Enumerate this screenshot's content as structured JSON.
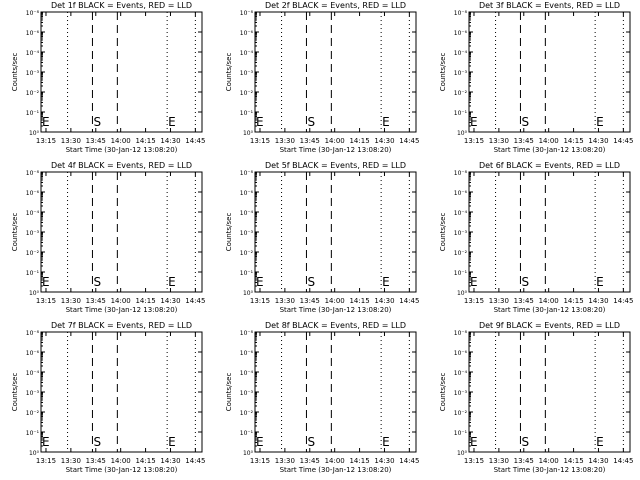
{
  "chart_data": [
    {
      "type": "line",
      "title": "Det 1f BLACK = Events, RED = LLD"
    },
    {
      "type": "line",
      "title": "Det 2f BLACK = Events, RED = LLD"
    },
    {
      "type": "line",
      "title": "Det 3f BLACK = Events, RED = LLD"
    },
    {
      "type": "line",
      "title": "Det 4f BLACK = Events, RED = LLD"
    },
    {
      "type": "line",
      "title": "Det 5f BLACK = Events, RED = LLD"
    },
    {
      "type": "line",
      "title": "Det 6f BLACK = Events, RED = LLD"
    },
    {
      "type": "line",
      "title": "Det 7f BLACK = Events, RED = LLD"
    },
    {
      "type": "line",
      "title": "Det 8f BLACK = Events, RED = LLD"
    },
    {
      "type": "line",
      "title": "Det 9f BLACK = Events, RED = LLD"
    }
  ],
  "shared": {
    "xlabel": "Start Time (30-Jan-12 13:08:20)",
    "ylabel": "Counts/sec",
    "yscale": "log",
    "xlim": [
      "13:12",
      "14:49"
    ],
    "xticks": [
      "13:15",
      "13:30",
      "13:45",
      "14:00",
      "14:15",
      "14:30",
      "14:45"
    ],
    "yticks": [
      "10⁰",
      "10⁻¹",
      "10⁻²",
      "10⁻³",
      "10⁻⁴",
      "10⁻⁶",
      "10⁻⁸"
    ],
    "dotted_lines": [
      "13:28",
      "14:28",
      "14:45"
    ],
    "dashed_lines": [
      "13:43",
      "13:58"
    ],
    "markers": [
      {
        "label": "E",
        "time": "13:12"
      },
      {
        "label": "S",
        "time": "13:43"
      },
      {
        "label": "E",
        "time": "14:28"
      }
    ],
    "line_color": "#000000",
    "background": "#ffffff"
  }
}
